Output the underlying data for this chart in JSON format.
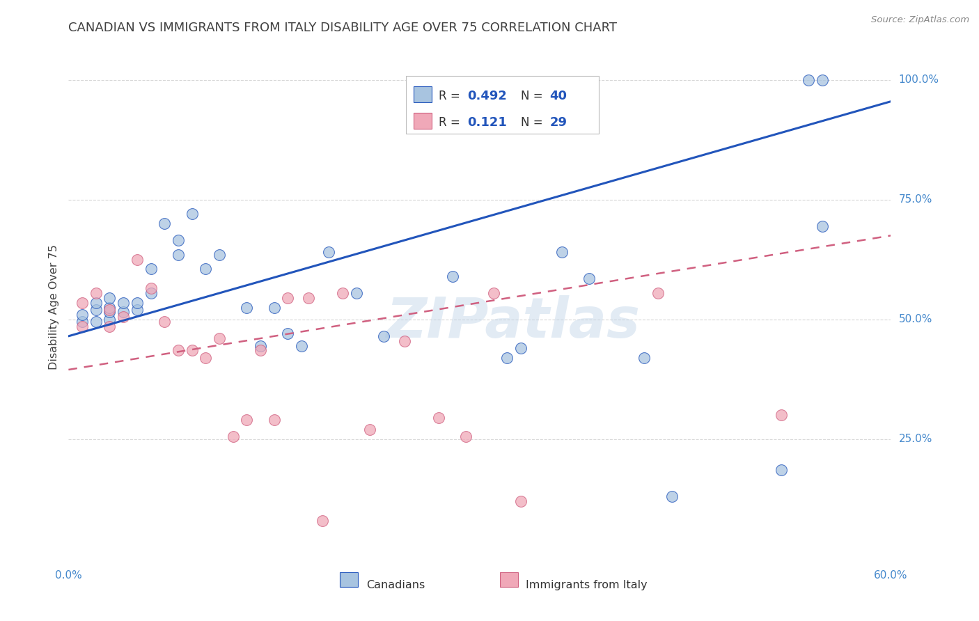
{
  "title": "CANADIAN VS IMMIGRANTS FROM ITALY DISABILITY AGE OVER 75 CORRELATION CHART",
  "source": "Source: ZipAtlas.com",
  "ylabel": "Disability Age Over 75",
  "watermark": "ZIPatlas",
  "xlim": [
    0.0,
    0.6
  ],
  "ylim": [
    0.0,
    1.05
  ],
  "yticks": [
    0.25,
    0.5,
    0.75,
    1.0
  ],
  "ytick_labels": [
    "25.0%",
    "50.0%",
    "75.0%",
    "100.0%"
  ],
  "legend_r_canadian": "0.492",
  "legend_n_canadian": "40",
  "legend_r_italy": "0.121",
  "legend_n_italy": "29",
  "canadian_color": "#a8c4e0",
  "italy_color": "#f0a8b8",
  "trendline_canadian_color": "#2255bb",
  "trendline_italy_color": "#d06080",
  "canadian_trend_x0": 0.0,
  "canadian_trend_y0": 0.465,
  "canadian_trend_x1": 0.6,
  "canadian_trend_y1": 0.955,
  "italy_trend_x0": 0.0,
  "italy_trend_y0": 0.395,
  "italy_trend_x1": 0.6,
  "italy_trend_y1": 0.675,
  "canadian_x": [
    0.01,
    0.01,
    0.02,
    0.02,
    0.02,
    0.03,
    0.03,
    0.03,
    0.03,
    0.04,
    0.04,
    0.05,
    0.05,
    0.06,
    0.06,
    0.07,
    0.08,
    0.08,
    0.09,
    0.1,
    0.11,
    0.13,
    0.14,
    0.15,
    0.16,
    0.17,
    0.19,
    0.21,
    0.23,
    0.28,
    0.32,
    0.33,
    0.36,
    0.38,
    0.42,
    0.44,
    0.52,
    0.54,
    0.55,
    0.55
  ],
  "canadian_y": [
    0.495,
    0.51,
    0.495,
    0.52,
    0.535,
    0.5,
    0.515,
    0.525,
    0.545,
    0.515,
    0.535,
    0.52,
    0.535,
    0.555,
    0.605,
    0.7,
    0.635,
    0.665,
    0.72,
    0.605,
    0.635,
    0.525,
    0.445,
    0.525,
    0.47,
    0.445,
    0.64,
    0.555,
    0.465,
    0.59,
    0.42,
    0.44,
    0.64,
    0.585,
    0.42,
    0.13,
    0.185,
    1.0,
    1.0,
    0.695
  ],
  "italy_x": [
    0.01,
    0.01,
    0.02,
    0.03,
    0.03,
    0.04,
    0.05,
    0.06,
    0.07,
    0.08,
    0.09,
    0.1,
    0.11,
    0.12,
    0.13,
    0.14,
    0.15,
    0.16,
    0.175,
    0.185,
    0.2,
    0.22,
    0.245,
    0.27,
    0.29,
    0.31,
    0.33,
    0.43,
    0.52
  ],
  "italy_y": [
    0.485,
    0.535,
    0.555,
    0.485,
    0.52,
    0.505,
    0.625,
    0.565,
    0.495,
    0.435,
    0.435,
    0.42,
    0.46,
    0.255,
    0.29,
    0.435,
    0.29,
    0.545,
    0.545,
    0.08,
    0.555,
    0.27,
    0.455,
    0.295,
    0.255,
    0.555,
    0.12,
    0.555,
    0.3
  ],
  "background_color": "#ffffff",
  "grid_color": "#d8d8d8",
  "title_color": "#404040",
  "axis_label_color": "#4488cc",
  "legend_text_color": "#2255bb",
  "legend_label_color": "#333333"
}
